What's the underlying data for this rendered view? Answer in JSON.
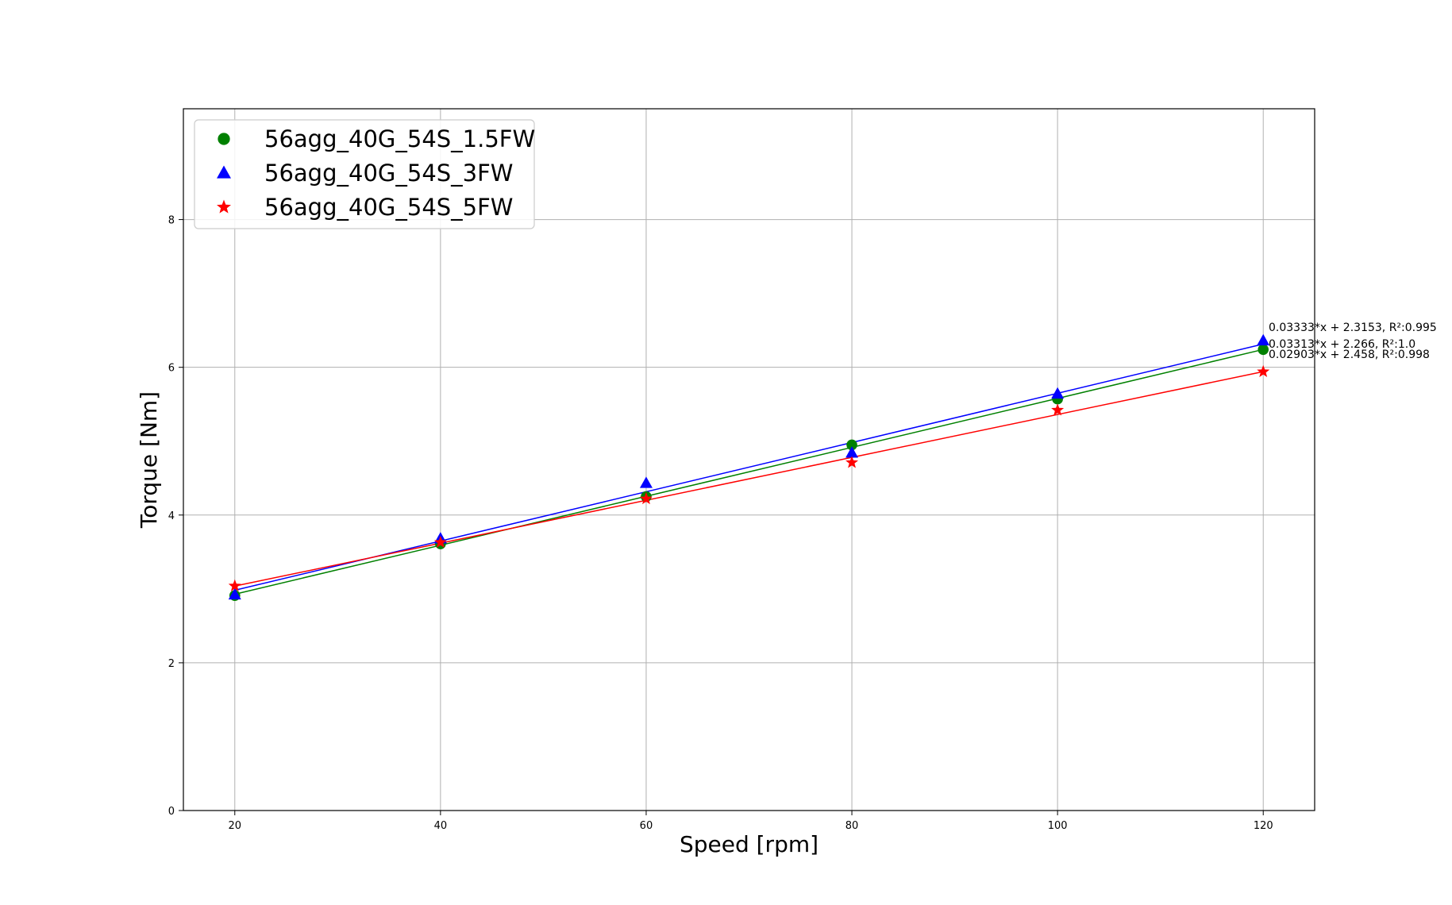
{
  "chart_data": {
    "type": "scatter",
    "xlabel": "Speed [rpm]",
    "ylabel": "Torque [Nm]",
    "xlim": [
      15,
      125
    ],
    "ylim": [
      0,
      9.5
    ],
    "xticks": [
      20,
      40,
      60,
      80,
      100,
      120
    ],
    "yticks": [
      0,
      2,
      4,
      6,
      8
    ],
    "grid": true,
    "legend_position": "upper-left",
    "series": [
      {
        "name": "56agg_40G_54S_1.5FW",
        "color": "#008000",
        "marker": "circle",
        "x": [
          20,
          40,
          60,
          80,
          100,
          120
        ],
        "y": [
          2.91,
          3.61,
          4.25,
          4.95,
          5.57,
          6.24
        ],
        "fit": {
          "slope": 0.03313,
          "intercept": 2.266,
          "label": "0.03313*x + 2.266, R²:1.0"
        }
      },
      {
        "name": "56agg_40G_54S_3FW",
        "color": "#0000ff",
        "marker": "triangle",
        "x": [
          20,
          40,
          60,
          80,
          100,
          120
        ],
        "y": [
          2.92,
          3.68,
          4.43,
          4.84,
          5.64,
          6.36
        ],
        "fit": {
          "slope": 0.03333,
          "intercept": 2.3153,
          "label": "0.03333*x + 2.3153, R²:0.995"
        }
      },
      {
        "name": "56agg_40G_54S_5FW",
        "color": "#ff0000",
        "marker": "star",
        "x": [
          20,
          40,
          60,
          80,
          100,
          120
        ],
        "y": [
          3.04,
          3.63,
          4.22,
          4.71,
          5.42,
          5.94
        ],
        "fit": {
          "slope": 0.02903,
          "intercept": 2.458,
          "label": "0.02903*x + 2.458, R²:0.998"
        }
      }
    ]
  }
}
